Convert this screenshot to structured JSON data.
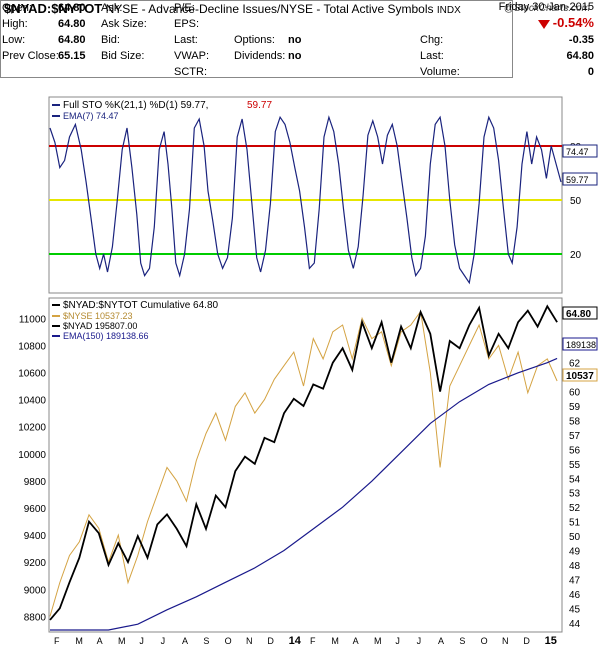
{
  "header": {
    "symbol": "$NYAD:$NYTOT",
    "description": "NYSE - Advance-Decline Issues/NYSE - Total Active Symbols",
    "exchange": "INDX",
    "brand": "@StockCharts.com"
  },
  "quote": {
    "date": "Friday  30-Jan-2015",
    "change_pct": "-0.54%",
    "open_label": "Open:",
    "open": "64.80",
    "high_label": "High:",
    "high": "64.80",
    "low_label": "Low:",
    "low": "64.80",
    "prev_label": "Prev Close:",
    "prev": "65.15",
    "ask_label": "Ask:",
    "ask_size_label": "Ask Size:",
    "bid_label": "Bid:",
    "bid_size_label": "Bid Size:",
    "pe_label": "P/E:",
    "eps_label": "EPS:",
    "last_label": "Last:",
    "vwap_label": "VWAP:",
    "sctr_label": "SCTR:",
    "options_label": "Options:",
    "options": "no",
    "dividends_label": "Dividends:",
    "dividends": "no",
    "chg_label": "Chg:",
    "chg": "-0.35",
    "last2_label": "Last:",
    "last": "64.80",
    "volume_label": "Volume:",
    "volume": "0"
  },
  "colors": {
    "sto": "#1a237e",
    "ema7": "#1a237e",
    "red": "#cc0000",
    "yellow": "#e6e600",
    "green": "#00cc00",
    "ratio": "#000000",
    "nyse": "#d4a343",
    "nyad": "#000000",
    "ema150": "#1a1a8c"
  },
  "chart_data": [
    {
      "type": "line",
      "title": "Full STO %K(21,1) %D(1) 59.77, 59.77",
      "legend": [
        {
          "label": "Full STO %K(21,1) %D(1) 59.77,",
          "value": "59.77"
        },
        {
          "label": "EMA(7) 74.47"
        }
      ],
      "ylim": [
        0,
        100
      ],
      "reference_lines": [
        80,
        50,
        20
      ],
      "yticks": [
        "80",
        "50",
        "20"
      ],
      "value_tags": [
        "74.47",
        "59.77"
      ],
      "series": [
        {
          "name": "Full STO %K(21,1) %D(1)",
          "points": [
            [
              0,
              90
            ],
            [
              0.5,
              82
            ],
            [
              1,
              68
            ],
            [
              1.5,
              72
            ],
            [
              2,
              85
            ],
            [
              2.6,
              92
            ],
            [
              3.2,
              78
            ],
            [
              3.7,
              60
            ],
            [
              4.2,
              40
            ],
            [
              4.7,
              20
            ],
            [
              5.1,
              12
            ],
            [
              5.5,
              20
            ],
            [
              5.9,
              10
            ],
            [
              6.4,
              24
            ],
            [
              6.9,
              50
            ],
            [
              7.4,
              78
            ],
            [
              7.9,
              90
            ],
            [
              8.4,
              68
            ],
            [
              8.9,
              42
            ],
            [
              9.3,
              15
            ],
            [
              9.7,
              8
            ],
            [
              10.2,
              12
            ],
            [
              10.7,
              35
            ],
            [
              11.2,
              78
            ],
            [
              11.7,
              88
            ],
            [
              12.1,
              70
            ],
            [
              12.5,
              45
            ],
            [
              12.9,
              15
            ],
            [
              13.3,
              8
            ],
            [
              13.8,
              20
            ],
            [
              14.3,
              45
            ],
            [
              14.8,
              90
            ],
            [
              15.3,
              95
            ],
            [
              15.8,
              80
            ],
            [
              16.2,
              55
            ],
            [
              16.7,
              38
            ],
            [
              17.2,
              20
            ],
            [
              17.7,
              12
            ],
            [
              18.2,
              18
            ],
            [
              18.7,
              40
            ],
            [
              19.2,
              85
            ],
            [
              19.7,
              95
            ],
            [
              20.2,
              78
            ],
            [
              20.7,
              48
            ],
            [
              21.2,
              18
            ],
            [
              21.6,
              10
            ],
            [
              22.1,
              22
            ],
            [
              22.6,
              48
            ],
            [
              23.1,
              88
            ],
            [
              23.6,
              96
            ],
            [
              24.1,
              92
            ],
            [
              24.6,
              82
            ],
            [
              25.1,
              68
            ],
            [
              25.6,
              55
            ],
            [
              26.1,
              35
            ],
            [
              26.6,
              12
            ],
            [
              27.1,
              15
            ],
            [
              27.6,
              45
            ],
            [
              28.1,
              85
            ],
            [
              28.6,
              96
            ],
            [
              29.1,
              88
            ],
            [
              29.6,
              70
            ],
            [
              30.1,
              45
            ],
            [
              30.6,
              22
            ],
            [
              31.1,
              12
            ],
            [
              31.6,
              24
            ],
            [
              32.1,
              52
            ],
            [
              32.6,
              86
            ],
            [
              33.1,
              94
            ],
            [
              33.6,
              85
            ],
            [
              34.1,
              70
            ],
            [
              34.6,
              86
            ],
            [
              35.1,
              92
            ],
            [
              35.6,
              80
            ],
            [
              36.1,
              60
            ],
            [
              36.6,
              40
            ],
            [
              37.1,
              18
            ],
            [
              37.5,
              8
            ],
            [
              38.0,
              12
            ],
            [
              38.5,
              30
            ],
            [
              39.0,
              70
            ],
            [
              39.5,
              92
            ],
            [
              40.0,
              96
            ],
            [
              40.5,
              80
            ],
            [
              41.0,
              50
            ],
            [
              41.5,
              25
            ],
            [
              42.0,
              12
            ],
            [
              42.5,
              8
            ],
            [
              43.0,
              4
            ],
            [
              43.5,
              20
            ],
            [
              44.0,
              48
            ],
            [
              44.5,
              85
            ],
            [
              45.0,
              96
            ],
            [
              45.5,
              90
            ],
            [
              46.0,
              72
            ],
            [
              46.5,
              45
            ],
            [
              47.0,
              20
            ],
            [
              47.4,
              15
            ],
            [
              47.9,
              35
            ],
            [
              48.4,
              70
            ],
            [
              48.9,
              88
            ],
            [
              49.4,
              70
            ],
            [
              49.9,
              85
            ],
            [
              50.4,
              78
            ],
            [
              50.9,
              62
            ],
            [
              51.4,
              80
            ],
            [
              51.9,
              70
            ],
            [
              52.4,
              60
            ]
          ]
        },
        {
          "name": "EMA(7)",
          "points": []
        }
      ]
    },
    {
      "type": "line",
      "title": "$NYAD:$NYTOT Cumulative 64.80",
      "legend": [
        {
          "label": "$NYAD:$NYTOT Cumulative 64.80"
        },
        {
          "label": "$NYSE 10537.23"
        },
        {
          "label": "$NYAD 195807.00"
        },
        {
          "label": "EMA(150) 189138.66"
        }
      ],
      "left_axis_ticks": [
        8800,
        9000,
        9200,
        9400,
        9600,
        9800,
        10000,
        10200,
        10400,
        10600,
        10800,
        11000
      ],
      "left_ylim": [
        8700,
        11120
      ],
      "right_axis_ticks": [
        44,
        45,
        46,
        47,
        48,
        49,
        50,
        51,
        52,
        53,
        54,
        55,
        56,
        57,
        58,
        59,
        60,
        61,
        62
      ],
      "right_ylim": [
        43.5,
        66.2
      ],
      "value_tags": [
        "64.80",
        "189138",
        "10537"
      ],
      "x_labels": [
        "F",
        "M",
        "A",
        "M",
        "J",
        "J",
        "A",
        "S",
        "O",
        "N",
        "D",
        "14",
        "F",
        "M",
        "A",
        "M",
        "J",
        "J",
        "A",
        "S",
        "O",
        "N",
        "D",
        "15"
      ],
      "series": [
        {
          "name": "$NYAD:$NYTOT",
          "axis": "right",
          "points": [
            [
              0,
              44.2
            ],
            [
              1,
              45.0
            ],
            [
              2,
              46.8
            ],
            [
              3,
              48.5
            ],
            [
              4,
              51.0
            ],
            [
              5,
              50.2
            ],
            [
              6,
              48.0
            ],
            [
              7,
              49.5
            ],
            [
              8,
              48.2
            ],
            [
              9,
              50.0
            ],
            [
              10,
              48.5
            ],
            [
              11,
              50.8
            ],
            [
              12,
              51.5
            ],
            [
              13,
              50.5
            ],
            [
              14,
              49.3
            ],
            [
              15,
              52.2
            ],
            [
              16,
              50.5
            ],
            [
              17,
              52.8
            ],
            [
              18,
              52.0
            ],
            [
              19,
              54.5
            ],
            [
              20,
              55.5
            ],
            [
              21,
              55.0
            ],
            [
              22,
              56.8
            ],
            [
              23,
              56.5
            ],
            [
              24,
              58.5
            ],
            [
              25,
              59.5
            ],
            [
              26,
              59.0
            ],
            [
              27,
              60.5
            ],
            [
              28,
              60.2
            ],
            [
              29,
              62.0
            ],
            [
              30,
              63.0
            ],
            [
              31,
              61.5
            ],
            [
              32,
              64.8
            ],
            [
              33,
              63.0
            ],
            [
              34,
              64.8
            ],
            [
              35,
              62.0
            ],
            [
              36,
              64.5
            ],
            [
              37,
              63.0
            ],
            [
              38,
              65.5
            ],
            [
              39,
              64.0
            ],
            [
              40,
              60.0
            ],
            [
              41,
              63.5
            ],
            [
              42,
              63.0
            ],
            [
              43,
              64.6
            ],
            [
              44,
              65.8
            ],
            [
              45,
              62.5
            ],
            [
              46,
              64.0
            ],
            [
              47,
              63.0
            ],
            [
              48,
              64.8
            ],
            [
              49,
              65.6
            ],
            [
              50,
              64.5
            ],
            [
              51,
              65.9
            ],
            [
              52,
              64.8
            ]
          ]
        },
        {
          "name": "$NYSE",
          "axis": "left",
          "points": [
            [
              0,
              8800
            ],
            [
              1,
              9050
            ],
            [
              2,
              9250
            ],
            [
              3,
              9350
            ],
            [
              4,
              9550
            ],
            [
              5,
              9450
            ],
            [
              6,
              9200
            ],
            [
              7,
              9400
            ],
            [
              8,
              9050
            ],
            [
              9,
              9250
            ],
            [
              10,
              9500
            ],
            [
              11,
              9700
            ],
            [
              12,
              9900
            ],
            [
              13,
              9800
            ],
            [
              14,
              9650
            ],
            [
              15,
              9950
            ],
            [
              16,
              10150
            ],
            [
              17,
              10300
            ],
            [
              18,
              10100
            ],
            [
              19,
              10350
            ],
            [
              20,
              10450
            ],
            [
              21,
              10300
            ],
            [
              22,
              10400
            ],
            [
              23,
              10550
            ],
            [
              24,
              10650
            ],
            [
              25,
              10750
            ],
            [
              26,
              10500
            ],
            [
              27,
              10850
            ],
            [
              28,
              10700
            ],
            [
              29,
              10900
            ],
            [
              30,
              10950
            ],
            [
              31,
              10700
            ],
            [
              32,
              11000
            ],
            [
              33,
              10850
            ],
            [
              34,
              10900
            ],
            [
              35,
              10650
            ],
            [
              36,
              10900
            ],
            [
              37,
              10950
            ],
            [
              38,
              11050
            ],
            [
              39,
              10600
            ],
            [
              40,
              9900
            ],
            [
              41,
              10500
            ],
            [
              42,
              10650
            ],
            [
              43,
              10800
            ],
            [
              44,
              10950
            ],
            [
              45,
              10700
            ],
            [
              46,
              10800
            ],
            [
              47,
              10550
            ],
            [
              48,
              10750
            ],
            [
              49,
              10450
            ],
            [
              50,
              10650
            ],
            [
              51,
              10700
            ],
            [
              52,
              10537
            ]
          ]
        },
        {
          "name": "EMA(150)",
          "axis": "right",
          "points": [
            [
              0,
              40.0
            ],
            [
              3,
              41.5
            ],
            [
              6,
              42.8
            ],
            [
              9,
              43.9
            ],
            [
              12,
              44.9
            ],
            [
              15,
              45.8
            ],
            [
              18,
              46.8
            ],
            [
              21,
              47.8
            ],
            [
              24,
              49.0
            ],
            [
              27,
              50.5
            ],
            [
              30,
              52.0
            ],
            [
              33,
              53.8
            ],
            [
              36,
              55.8
            ],
            [
              39,
              57.8
            ],
            [
              42,
              59.3
            ],
            [
              45,
              60.5
            ],
            [
              48,
              61.3
            ],
            [
              51,
              62.0
            ],
            [
              52,
              62.3
            ]
          ]
        }
      ]
    }
  ]
}
